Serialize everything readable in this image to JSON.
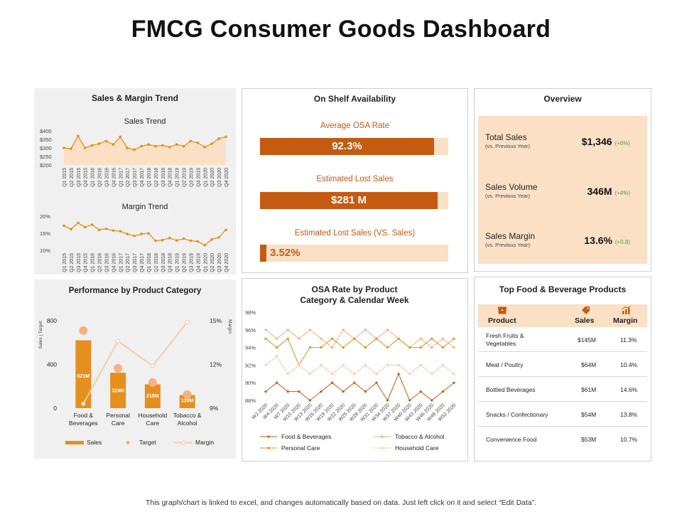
{
  "page": {
    "title": "FMCG Consumer Goods Dashboard",
    "footer": "This graph/chart is linked to excel, and changes automatically based on data. Just left click on it and select “Edit Data”."
  },
  "colors": {
    "accent": "#c55a11",
    "orange": "#e58f1e",
    "light": "#fbe0c6",
    "line": "#f4b183",
    "gray_panel": "#f0f0f0"
  },
  "sales_margin": {
    "title": "Sales & Margin Trend",
    "quarters": [
      "Q1 2015",
      "Q2 2015",
      "Q3 2015",
      "Q4 2015",
      "Q1 2016",
      "Q2 2016",
      "Q3 2016",
      "Q4 2016",
      "Q1 2017",
      "Q2 2017",
      "Q3 2017",
      "Q4 2017",
      "Q1 2018",
      "Q2 2018",
      "Q3 2018",
      "Q4 2018",
      "Q1 2019",
      "Q2 2019",
      "Q3 2019",
      "Q4 2019",
      "Q1 2020",
      "Q2 2020",
      "Q3 2020",
      "Q4 2020"
    ]
  },
  "osa": {
    "title": "On Shelf Availability",
    "items": [
      {
        "label": "Average OSA Rate",
        "value": "92.3%",
        "fill": 0.923
      },
      {
        "label": "Estimated Lost Sales",
        "value": "$281 M",
        "fill": 0.945
      },
      {
        "label": "Estimated Lost Sales (VS. Sales)",
        "value": "3.52%",
        "fill": 0.035
      }
    ]
  },
  "overview": {
    "title": "Overview",
    "items": [
      {
        "label": "Total Sales",
        "sub": "(vs. Previous Year)",
        "value": "$1,346",
        "change": "(+6%)"
      },
      {
        "label": "Sales Volume",
        "sub": "(vs. Previous Year)",
        "value": "346M",
        "change": "(+4%)"
      },
      {
        "label": "Sales Margin",
        "sub": "(vs. Previous Year)",
        "value": "13.6%",
        "change": "(+0.8)"
      }
    ]
  },
  "top_products": {
    "title": "Top Food & Beverage Products",
    "headers": {
      "product": "Product",
      "sales": "Sales",
      "margin": "Margin"
    },
    "icons": {
      "product": "box-icon",
      "sales": "price-tag-icon",
      "margin": "growth-chart-icon"
    },
    "rows": [
      {
        "product": "Fresh Fruits & Vegetables",
        "sales": "$145M",
        "margin": "11.3%"
      },
      {
        "product": "Meat / Poultry",
        "sales": "$64M",
        "margin": "10.4%"
      },
      {
        "product": "Bottled Beverages",
        "sales": "$61M",
        "margin": "14.6%"
      },
      {
        "product": "Snacks / Confectionary",
        "sales": "$54M",
        "margin": "13.8%"
      },
      {
        "product": "Convenience Food",
        "sales": "$53M",
        "margin": "10.7%"
      }
    ]
  },
  "chart_data": [
    {
      "id": "sales_trend",
      "type": "area",
      "title": "Sales Trend",
      "x": [
        "Q1 2015",
        "Q2 2015",
        "Q3 2015",
        "Q4 2015",
        "Q1 2016",
        "Q2 2016",
        "Q3 2016",
        "Q4 2016",
        "Q1 2017",
        "Q2 2017",
        "Q3 2017",
        "Q4 2017",
        "Q1 2018",
        "Q2 2018",
        "Q3 2018",
        "Q4 2018",
        "Q1 2019",
        "Q2 2019",
        "Q3 2019",
        "Q4 2019",
        "Q1 2020",
        "Q2 2020",
        "Q3 2020",
        "Q4 2020"
      ],
      "values": [
        300,
        295,
        370,
        300,
        315,
        325,
        340,
        320,
        365,
        300,
        290,
        310,
        320,
        310,
        315,
        305,
        320,
        310,
        340,
        330,
        305,
        325,
        355,
        365
      ],
      "ylim": [
        200,
        400
      ],
      "yticks": [
        "$400",
        "$350",
        "$300",
        "$250",
        "$200"
      ],
      "ytick_values": [
        400,
        350,
        300,
        250,
        200
      ]
    },
    {
      "id": "margin_trend",
      "type": "line",
      "title": "Margin Trend",
      "x": [
        "Q1 2015",
        "Q2 2015",
        "Q3 2015",
        "Q4 2015",
        "Q1 2016",
        "Q2 2016",
        "Q3 2016",
        "Q4 2016",
        "Q1 2017",
        "Q2 2017",
        "Q3 2017",
        "Q4 2017",
        "Q1 2018",
        "Q2 2018",
        "Q3 2018",
        "Q4 2018",
        "Q1 2019",
        "Q2 2019",
        "Q3 2019",
        "Q4 2019",
        "Q1 2020",
        "Q2 2020",
        "Q3 2020",
        "Q4 2020"
      ],
      "values": [
        17.2,
        16.2,
        18.0,
        16.8,
        17.5,
        16.0,
        16.3,
        15.8,
        15.6,
        14.8,
        14.2,
        14.8,
        15.0,
        12.8,
        13.0,
        13.6,
        12.9,
        13.4,
        12.8,
        12.6,
        11.5,
        13.2,
        13.8,
        16.0
      ],
      "ylim": [
        10,
        20
      ],
      "yticks": [
        "20%",
        "15%",
        "10%"
      ],
      "ytick_values": [
        20,
        15,
        10
      ]
    },
    {
      "id": "performance",
      "type": "bar",
      "title": "Performance by Product Category",
      "categories": [
        "Food & Beverages",
        "Personal Care",
        "Household Care",
        "Tobacco & Alcohol"
      ],
      "category_lines": [
        [
          "Food &",
          "Beverages"
        ],
        [
          "Personal",
          "Care"
        ],
        [
          "Household",
          "Care"
        ],
        [
          "Tobacco &",
          "Alcohol"
        ]
      ],
      "series": [
        {
          "name": "Sales",
          "values": [
            621,
            324,
            218,
            120
          ],
          "labels": [
            "621M",
            "324M",
            "218M",
            "120M"
          ]
        },
        {
          "name": "Target",
          "values": [
            710,
            365,
            235,
            125
          ]
        },
        {
          "name": "Margin",
          "values": [
            9.3,
            13.6,
            11.9,
            14.9
          ]
        }
      ],
      "ylabel": "Sales | Target",
      "y2label": "Margin",
      "ylim": [
        0,
        800
      ],
      "yticks": [
        "800",
        "400",
        "0"
      ],
      "ytick_values": [
        800,
        400,
        0
      ],
      "y2lim": [
        9,
        15
      ],
      "y2ticks": [
        "15%",
        "12%",
        "9%"
      ],
      "y2tick_values": [
        15,
        12,
        9
      ],
      "legend": [
        "Sales",
        "Target",
        "Margin"
      ]
    },
    {
      "id": "osa_weekly",
      "type": "line",
      "title": "OSA Rate by Product Category & Calendar Week",
      "title_lines": [
        "OSA Rate by Product",
        "Category & Calendar Week"
      ],
      "x": [
        "W1 2020",
        "W4 2020",
        "W7 2020",
        "W10 2020",
        "W13 2020",
        "W16 2020",
        "W19 2020",
        "W22 2020",
        "W25 2020",
        "W28 2020",
        "W31 2020",
        "W34 2020",
        "W37 2020",
        "W40 2020",
        "W43 2020",
        "W46 2020",
        "W49 2020",
        "W52 2020"
      ],
      "series": [
        {
          "name": "Food & Beverages",
          "color": "#c55a11",
          "values": [
            89,
            90,
            89,
            89,
            88,
            89,
            90,
            89,
            90,
            89,
            90,
            88,
            91,
            88,
            89,
            88,
            89,
            90
          ]
        },
        {
          "name": "Tobacco & Alcohol",
          "color": "#f4b183",
          "values": [
            96,
            95,
            96,
            95,
            96,
            95,
            94,
            96,
            95,
            96,
            95,
            96,
            95,
            94,
            95,
            94,
            95,
            94
          ]
        },
        {
          "name": "Personal Care",
          "color": "#e58f1e",
          "values": [
            95,
            94,
            95,
            92,
            94,
            94,
            95,
            94,
            95,
            94,
            95,
            94,
            95,
            94,
            94,
            95,
            94,
            95
          ]
        },
        {
          "name": "Household Care",
          "color": "#f8cba6",
          "values": [
            92,
            93,
            91,
            92,
            91,
            92,
            91,
            92,
            91,
            92,
            91,
            92,
            92,
            91,
            92,
            91,
            92,
            91
          ]
        }
      ],
      "ylim": [
        88,
        98
      ],
      "yticks": [
        "98%",
        "96%",
        "94%",
        "92%",
        "90%",
        "88%"
      ],
      "ytick_values": [
        98,
        96,
        94,
        92,
        90,
        88
      ],
      "legend": [
        "Food & Beverages",
        "Tobacco & Alcohol",
        "Personal Care",
        "Household Care"
      ]
    }
  ]
}
